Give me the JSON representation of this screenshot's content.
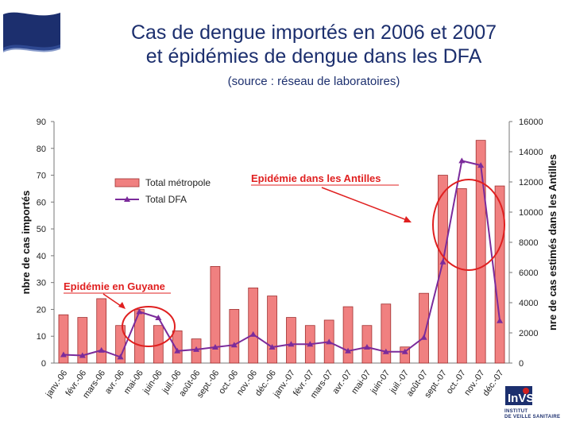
{
  "header": {
    "title_line1": "Cas de dengue importés en 2006 et 2007",
    "title_line2": "et épidémies de dengue dans les DFA",
    "source": "(source : réseau de laboratoires)"
  },
  "logo": {
    "text": "InVS",
    "subtitle_line1": "INSTITUT",
    "subtitle_line2": "DE VEILLE SANITAIRE"
  },
  "chart_data": {
    "type": "bar+line",
    "categories": [
      "janv.-06",
      "févr.-06",
      "mars-06",
      "avr.-06",
      "mai-06",
      "juin-06",
      "juil.-06",
      "août-06",
      "sept.-06",
      "oct.-06",
      "nov.-06",
      "déc.-06",
      "janv.-07",
      "févr.-07",
      "mars-07",
      "avr.-07",
      "mai-07",
      "juin-07",
      "juil.-07",
      "août-07",
      "sept.-07",
      "oct.-07",
      "nov.-07",
      "déc.-07"
    ],
    "ylabel_left": "nbre de cas importés",
    "ylabel_right": "nre de cas estimés dans les Antilles",
    "ylim_left": [
      0,
      90
    ],
    "yticks_left": [
      0,
      10,
      20,
      30,
      40,
      50,
      60,
      70,
      80,
      90
    ],
    "ylim_right": [
      0,
      16000
    ],
    "yticks_right": [
      0,
      2000,
      4000,
      6000,
      8000,
      10000,
      12000,
      14000,
      16000
    ],
    "series": [
      {
        "name": "Total métropole",
        "type": "bar",
        "axis": "left",
        "color": "#f08080",
        "values": [
          18,
          17,
          24,
          14,
          20,
          14,
          12,
          9,
          36,
          20,
          28,
          25,
          17,
          14,
          16,
          21,
          14,
          22,
          6,
          26,
          70,
          65,
          83,
          66
        ]
      },
      {
        "name": "Total DFA",
        "type": "line",
        "axis": "right",
        "color": "#7b2b9b",
        "values": [
          550,
          500,
          850,
          400,
          3400,
          3000,
          800,
          900,
          1050,
          1200,
          1900,
          1050,
          1250,
          1250,
          1400,
          800,
          1050,
          750,
          750,
          1700,
          6700,
          13400,
          13100,
          2800
        ]
      }
    ],
    "annotations": [
      {
        "text": "Epidémie en Guyane",
        "color": "#e02020"
      },
      {
        "text": "Epidémie dans les Antilles",
        "color": "#e02020"
      }
    ]
  }
}
